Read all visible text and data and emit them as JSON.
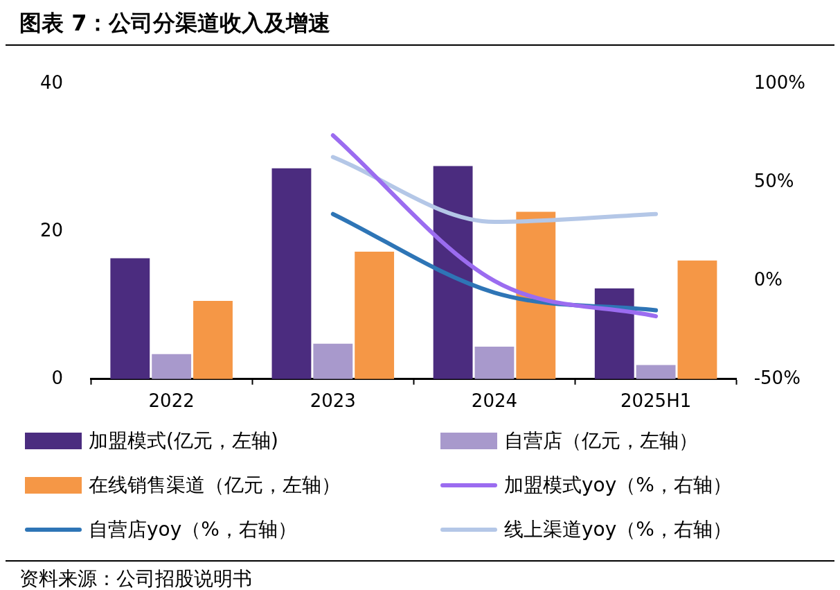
{
  "chart_data": {
    "type": "bar",
    "title": "图表 7：公司分渠道收入及增速",
    "categories": [
      "2022",
      "2023",
      "2024",
      "2025H1"
    ],
    "series": [
      {
        "name": "加盟模式(亿元，左轴)",
        "color": "#4b2c7f",
        "values": [
          16.4,
          28.6,
          28.9,
          12.3
        ]
      },
      {
        "name": "自营店（亿元，左轴）",
        "color": "#a899cc",
        "values": [
          3.4,
          4.8,
          4.4,
          1.9
        ]
      },
      {
        "name": "在线销售渠道（亿元，左轴）",
        "color": "#f59746",
        "values": [
          10.6,
          17.3,
          22.7,
          16.1
        ]
      },
      {
        "name": "加盟模式yoy（%，右轴）",
        "type": "line",
        "axis": "y2",
        "color": "#9b6cf0",
        "values": [
          null,
          74,
          0,
          -18
        ]
      },
      {
        "name": "自营店yoy（%，右轴）",
        "type": "line",
        "axis": "y2",
        "color": "#2e75b6",
        "values": [
          null,
          34,
          -6,
          -15
        ]
      },
      {
        "name": "线上渠道yoy（%，右轴）",
        "type": "line",
        "axis": "y2",
        "color": "#b4c7e7",
        "values": [
          null,
          63,
          30,
          34
        ]
      }
    ],
    "ylim": [
      0,
      40
    ],
    "yticks": [
      0,
      20,
      40
    ],
    "y2lim": [
      -50,
      100
    ],
    "y2ticks": [
      {
        "value": -50,
        "label": "-50%"
      },
      {
        "value": 0,
        "label": "0%"
      },
      {
        "value": 50,
        "label": "50%"
      },
      {
        "value": 100,
        "label": "100%"
      }
    ],
    "grid": false,
    "legend": "bottom",
    "marker": "none",
    "annotations": [
      "资料来源：公司招股说明书"
    ]
  }
}
